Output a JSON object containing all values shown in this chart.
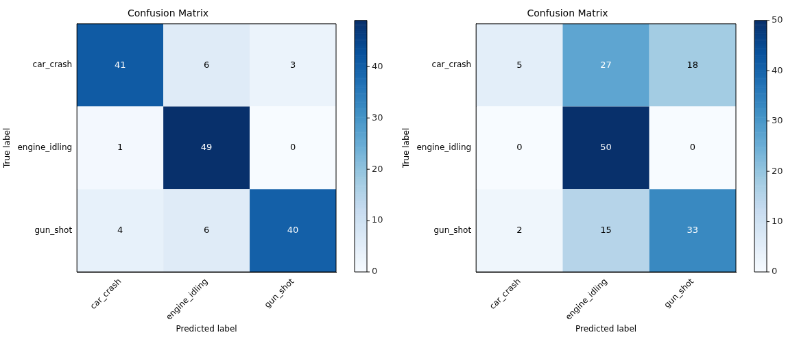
{
  "chart_data": [
    {
      "type": "heatmap",
      "title": "Confusion Matrix",
      "xlabel": "Predicted label",
      "ylabel": "True label",
      "categories": [
        "car_crash",
        "engine_idling",
        "gun_shot"
      ],
      "y_categories": [
        "car_crash",
        "engine_idling",
        "gun_shot"
      ],
      "cells": [
        [
          41,
          6,
          3
        ],
        [
          1,
          49,
          0
        ],
        [
          4,
          6,
          40
        ]
      ],
      "clim": [
        0,
        49
      ],
      "cticks": [
        0,
        10,
        20,
        30,
        40
      ],
      "data_labels": true
    },
    {
      "type": "heatmap",
      "title": "Confusion Matrix",
      "xlabel": "Predicted label",
      "ylabel": "True label",
      "categories": [
        "car_crash",
        "engine_idling",
        "gun_shot"
      ],
      "y_categories": [
        "car_crash",
        "engine_idling",
        "gun_shot"
      ],
      "cells": [
        [
          5,
          27,
          18
        ],
        [
          0,
          50,
          0
        ],
        [
          2,
          15,
          33
        ]
      ],
      "clim": [
        0,
        50
      ],
      "cticks": [
        0,
        10,
        20,
        30,
        40,
        50
      ],
      "data_labels": true
    }
  ]
}
